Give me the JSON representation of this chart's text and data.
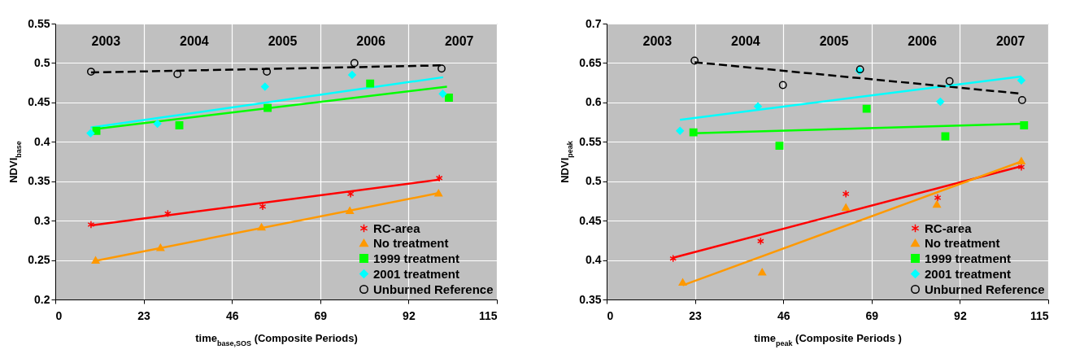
{
  "chart_data": [
    {
      "type": "scatter",
      "xlabel": "time$_{base,SOS}$ (Composite Periods)",
      "ylabel": "NDVI$_{base}$",
      "xlim": [
        0,
        115
      ],
      "xticks": [
        0,
        23,
        46,
        69,
        92,
        115
      ],
      "ylim": [
        0.2,
        0.55
      ],
      "yticks": [
        0.2,
        0.25,
        0.3,
        0.35,
        0.4,
        0.45,
        0.5,
        0.55
      ],
      "grid": true,
      "legend": "bottom right",
      "annotations": [
        "2003",
        "2004",
        "2005",
        "2006",
        "2007"
      ],
      "series": [
        {
          "type": "line",
          "color": "#ff0000",
          "line_style": "solid",
          "x": [
            9.3,
            100
          ],
          "values": [
            0.294,
            0.352
          ]
        },
        {
          "type": "line",
          "color": "#ff9900",
          "line_style": "solid",
          "x": [
            10.5,
            99.8
          ],
          "values": [
            0.249,
            0.335
          ]
        },
        {
          "type": "line",
          "color": "#00ff00",
          "line_style": "solid",
          "x": [
            10,
            102
          ],
          "values": [
            0.416,
            0.47
          ]
        },
        {
          "type": "line",
          "color": "#00ffff",
          "line_style": "solid",
          "x": [
            9.2,
            101
          ],
          "values": [
            0.418,
            0.482
          ]
        },
        {
          "type": "line",
          "color": "#000000",
          "line_style": "dashed",
          "x": [
            9.3,
            100.6
          ],
          "values": [
            0.488,
            0.497
          ]
        },
        {
          "type": "scatter",
          "name": "RC-area",
          "color": "#ff0000",
          "marker": "cross",
          "x": [
            9.3,
            29.3,
            54,
            76.9,
            100
          ],
          "values": [
            0.295,
            0.309,
            0.318,
            0.334,
            0.354
          ]
        },
        {
          "type": "scatter",
          "name": "No treatment",
          "color": "#ff9900",
          "marker": "triangle",
          "x": [
            10.5,
            27.4,
            53.7,
            76.7,
            99.8
          ],
          "values": [
            0.25,
            0.266,
            0.292,
            0.313,
            0.335
          ]
        },
        {
          "type": "scatter",
          "name": "1999 treatment",
          "color": "#00ff00",
          "marker": "square",
          "x": [
            10.7,
            32.3,
            55.3,
            82,
            102.5
          ],
          "values": [
            0.414,
            0.421,
            0.443,
            0.474,
            0.456
          ]
        },
        {
          "type": "scatter",
          "name": "2001 treatment",
          "color": "#00ffff",
          "marker": "diamond",
          "x": [
            9.2,
            26.6,
            54.6,
            77.3,
            100.9
          ],
          "values": [
            0.411,
            0.423,
            0.47,
            0.485,
            0.461
          ]
        },
        {
          "type": "scatter",
          "name": "Unburned Reference",
          "color": "#000000",
          "marker": "circle",
          "x": [
            9.3,
            31.8,
            55.1,
            77.9,
            100.6
          ],
          "values": [
            0.489,
            0.486,
            0.489,
            0.5,
            0.493
          ]
        }
      ]
    },
    {
      "type": "scatter",
      "xlabel": "time$_{peak}$ (Composite Periods )",
      "ylabel": "NDVI$_{peak}$",
      "xlim": [
        0,
        115
      ],
      "xticks": [
        0,
        23,
        46,
        69,
        92,
        115
      ],
      "ylim": [
        0.35,
        0.7
      ],
      "yticks": [
        0.35,
        0.4,
        0.45,
        0.5,
        0.55,
        0.6,
        0.65,
        0.7
      ],
      "grid": true,
      "legend": "bottom right",
      "annotations": [
        "2003",
        "2004",
        "2005",
        "2006",
        "2007"
      ],
      "series": [
        {
          "type": "line",
          "color": "#ff0000",
          "line_style": "solid",
          "x": [
            17.3,
            108
          ],
          "values": [
            0.403,
            0.519
          ]
        },
        {
          "type": "line",
          "color": "#ff9900",
          "line_style": "solid",
          "x": [
            19.8,
            108
          ],
          "values": [
            0.368,
            0.525
          ]
        },
        {
          "type": "line",
          "color": "#00ff00",
          "line_style": "solid",
          "x": [
            22.6,
            108.7
          ],
          "values": [
            0.561,
            0.573
          ]
        },
        {
          "type": "line",
          "color": "#00ffff",
          "line_style": "solid",
          "x": [
            19.1,
            108
          ],
          "values": [
            0.578,
            0.633
          ]
        },
        {
          "type": "line",
          "color": "#000000",
          "line_style": "dashed",
          "x": [
            22.9,
            108.2
          ],
          "values": [
            0.651,
            0.611
          ]
        },
        {
          "type": "scatter",
          "name": "RC-area",
          "color": "#ff0000",
          "marker": "cross",
          "x": [
            17.3,
            40.1,
            62.3,
            86.2,
            108
          ],
          "values": [
            0.402,
            0.424,
            0.484,
            0.479,
            0.518
          ]
        },
        {
          "type": "scatter",
          "name": "No treatment",
          "color": "#ff9900",
          "marker": "triangle",
          "x": [
            19.8,
            40.5,
            62.3,
            86,
            108
          ],
          "values": [
            0.372,
            0.385,
            0.467,
            0.471,
            0.526
          ]
        },
        {
          "type": "scatter",
          "name": "1999 treatment",
          "color": "#00ff00",
          "marker": "square",
          "x": [
            22.6,
            45,
            67.7,
            88.2,
            108.7
          ],
          "values": [
            0.562,
            0.545,
            0.592,
            0.557,
            0.571
          ]
        },
        {
          "type": "scatter",
          "name": "2001 treatment",
          "color": "#00ffff",
          "marker": "diamond",
          "x": [
            19.1,
            39.4,
            65.8,
            86.9,
            108
          ],
          "values": [
            0.564,
            0.595,
            0.64,
            0.601,
            0.628
          ]
        },
        {
          "type": "scatter",
          "name": "Unburned Reference",
          "color": "#000000",
          "marker": "circle",
          "x": [
            22.9,
            45.9,
            66,
            89.3,
            108.2
          ],
          "values": [
            0.653,
            0.622,
            0.642,
            0.627,
            0.603
          ]
        }
      ]
    }
  ]
}
